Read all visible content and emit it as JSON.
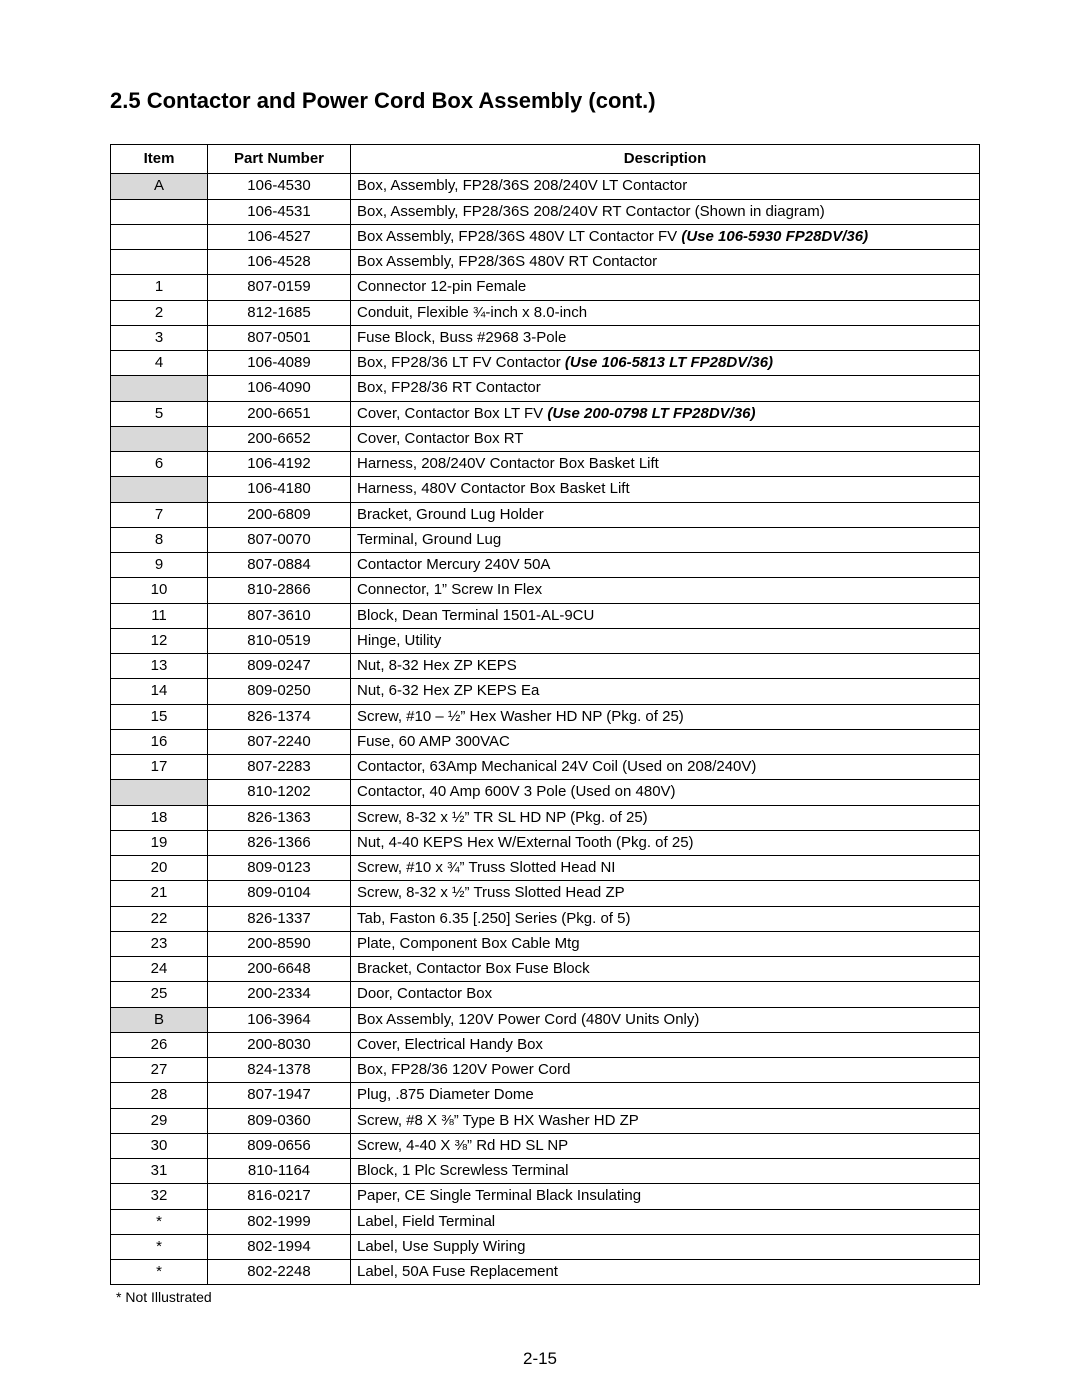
{
  "section_title": "2.5  Contactor and Power Cord Box Assembly (cont.)",
  "columns": {
    "item": "Item",
    "part": "Part Number",
    "desc": "Description"
  },
  "rows": [
    {
      "shaded": true,
      "item": "A",
      "part": "106-4530",
      "desc": "Box, Assembly, FP28/36S 208/240V LT Contactor"
    },
    {
      "shaded": false,
      "item": "",
      "part": "106-4531",
      "desc": "Box, Assembly, FP28/36S 208/240V RT Contactor (Shown in diagram)"
    },
    {
      "shaded": false,
      "item": "",
      "part": "106-4527",
      "desc_prefix": "Box Assembly, FP28/36S 480V LT Contactor FV ",
      "desc_emph": "(Use 106-5930 FP28DV/36)"
    },
    {
      "shaded": false,
      "item": "",
      "part": "106-4528",
      "desc": "Box Assembly, FP28/36S 480V RT Contactor"
    },
    {
      "shaded": false,
      "item": "1",
      "part": "807-0159",
      "desc": "Connector  12-pin Female"
    },
    {
      "shaded": false,
      "item": "2",
      "part": "812-1685",
      "desc": "Conduit, Flexible ¾-inch x 8.0-inch"
    },
    {
      "shaded": false,
      "item": "3",
      "part": "807-0501",
      "desc": "Fuse Block, Buss #2968 3-Pole"
    },
    {
      "shaded": false,
      "item": "4",
      "part": "106-4089",
      "desc_prefix": "Box, FP28/36 LT FV Contactor ",
      "desc_emph": "(Use 106-5813 LT FP28DV/36)"
    },
    {
      "shaded": true,
      "item": "",
      "part": "106-4090",
      "desc": "Box, FP28/36 RT Contactor"
    },
    {
      "shaded": false,
      "item": "5",
      "part": "200-6651",
      "desc_prefix": "Cover, Contactor Box LT FV ",
      "desc_emph": "(Use 200-0798 LT  FP28DV/36)"
    },
    {
      "shaded": true,
      "item": "",
      "part": "200-6652",
      "desc": "Cover, Contactor Box RT"
    },
    {
      "shaded": false,
      "item": "6",
      "part": "106-4192",
      "desc": "Harness, 208/240V Contactor Box Basket Lift"
    },
    {
      "shaded": true,
      "item": "",
      "part": "106-4180",
      "desc": "Harness, 480V Contactor Box Basket Lift"
    },
    {
      "shaded": false,
      "item": "7",
      "part": "200-6809",
      "desc": "Bracket, Ground Lug Holder"
    },
    {
      "shaded": false,
      "item": "8",
      "part": "807-0070",
      "desc": "Terminal, Ground Lug"
    },
    {
      "shaded": false,
      "item": "9",
      "part": "807-0884",
      "desc": "Contactor Mercury 240V 50A"
    },
    {
      "shaded": false,
      "item": "10",
      "part": "810-2866",
      "desc": "Connector, 1” Screw In Flex"
    },
    {
      "shaded": false,
      "item": "11",
      "part": "807-3610",
      "desc": "Block, Dean Terminal 1501-AL-9CU"
    },
    {
      "shaded": false,
      "item": "12",
      "part": "810-0519",
      "desc": "Hinge, Utility"
    },
    {
      "shaded": false,
      "item": "13",
      "part": "809-0247",
      "desc": "Nut, 8-32 Hex ZP KEPS"
    },
    {
      "shaded": false,
      "item": "14",
      "part": "809-0250",
      "desc": "Nut, 6-32 Hex ZP KEPS Ea"
    },
    {
      "shaded": false,
      "item": "15",
      "part": "826-1374",
      "desc": "Screw, #10 – ½” Hex Washer HD NP  (Pkg. of 25)"
    },
    {
      "shaded": false,
      "item": "16",
      "part": "807-2240",
      "desc": "Fuse, 60 AMP  300VAC"
    },
    {
      "shaded": false,
      "item": "17",
      "part": "807-2283",
      "desc": "Contactor, 63Amp Mechanical 24V Coil (Used on 208/240V)"
    },
    {
      "shaded": true,
      "item": "",
      "part": "810-1202",
      "desc": "Contactor, 40 Amp 600V 3 Pole (Used on 480V)"
    },
    {
      "shaded": false,
      "item": "18",
      "part": "826-1363",
      "desc": "Screw, 8-32 x ½” TR SL HD NP  (Pkg. of 25)"
    },
    {
      "shaded": false,
      "item": "19",
      "part": "826-1366",
      "desc": "Nut, 4-40 KEPS Hex W/External Tooth  (Pkg. of 25)"
    },
    {
      "shaded": false,
      "item": "20",
      "part": "809-0123",
      "desc": "Screw, #10 x ¾” Truss Slotted Head NI"
    },
    {
      "shaded": false,
      "item": "21",
      "part": "809-0104",
      "desc": "Screw, 8-32 x ½” Truss Slotted Head ZP"
    },
    {
      "shaded": false,
      "item": "22",
      "part": "826-1337",
      "desc": "Tab, Faston 6.35 [.250] Series  (Pkg. of 5)"
    },
    {
      "shaded": false,
      "item": "23",
      "part": "200-8590",
      "desc": "Plate, Component Box Cable Mtg"
    },
    {
      "shaded": false,
      "item": "24",
      "part": "200-6648",
      "desc": "Bracket, Contactor Box Fuse Block"
    },
    {
      "shaded": false,
      "item": "25",
      "part": "200-2334",
      "desc": "Door, Contactor Box"
    },
    {
      "shaded": true,
      "item": "B",
      "part": "106-3964",
      "desc": "Box Assembly, 120V Power Cord (480V Units Only)"
    },
    {
      "shaded": false,
      "item": "26",
      "part": "200-8030",
      "desc": "Cover, Electrical Handy Box"
    },
    {
      "shaded": false,
      "item": "27",
      "part": "824-1378",
      "desc": "Box, FP28/36 120V Power Cord"
    },
    {
      "shaded": false,
      "item": "28",
      "part": "807-1947",
      "desc": "Plug, .875 Diameter Dome"
    },
    {
      "shaded": false,
      "item": "29",
      "part": "809-0360",
      "desc": "Screw, #8 X ⅜” Type B HX Washer HD ZP"
    },
    {
      "shaded": false,
      "item": "30",
      "part": "809-0656",
      "desc": "Screw, 4-40 X ⅜” Rd HD SL NP"
    },
    {
      "shaded": false,
      "item": "31",
      "part": "810-1164",
      "desc": "Block, 1 Plc Screwless Terminal"
    },
    {
      "shaded": false,
      "item": "32",
      "part": "816-0217",
      "desc": "Paper, CE Single Terminal Black Insulating"
    },
    {
      "shaded": false,
      "item": "*",
      "part": "802-1999",
      "desc": "Label, Field Terminal"
    },
    {
      "shaded": false,
      "item": "*",
      "part": "802-1994",
      "desc": "Label, Use Supply Wiring"
    },
    {
      "shaded": false,
      "item": "*",
      "part": "802-2248",
      "desc": "Label, 50A Fuse Replacement"
    }
  ],
  "foot_note": "* Not Illustrated",
  "page_number": "2-15",
  "styling": {
    "shaded_bg": "#d9d9d9",
    "border_color": "#000000",
    "font_family": "Arial, Helvetica, sans-serif"
  }
}
